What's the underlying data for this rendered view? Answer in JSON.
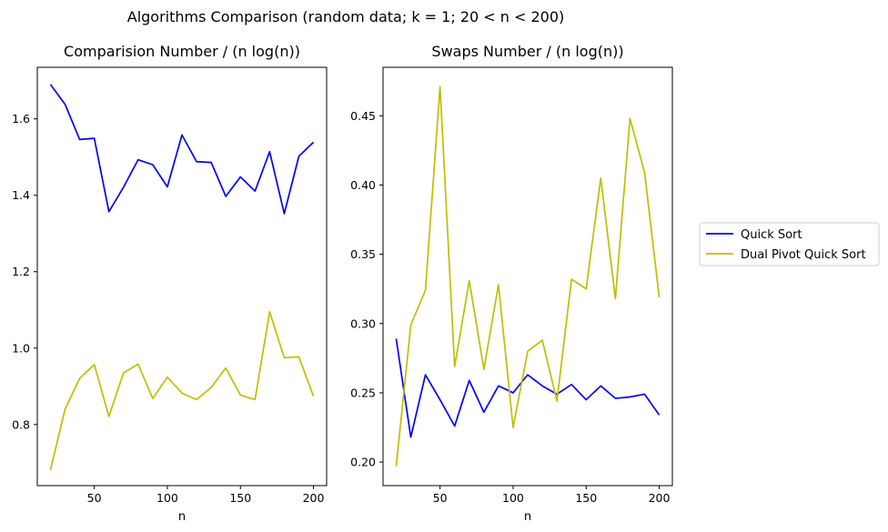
{
  "figure": {
    "suptitle": "Algorithms Comparison (random data;  k = 1;  20 < n < 200)"
  },
  "legend": {
    "placement": "right-center",
    "entries": [
      {
        "label": "Quick Sort",
        "color": "#0000ff"
      },
      {
        "label": "Dual Pivot Quick Sort",
        "color": "#bfbf00"
      }
    ]
  },
  "chart_data": [
    {
      "type": "line",
      "title": "Comparision Number / (n log(n))",
      "xlabel": "n",
      "ylabel": "",
      "xlim": [
        11,
        209
      ],
      "ylim": [
        0.64,
        1.735
      ],
      "xticks": [
        50,
        100,
        150,
        200
      ],
      "yticks": [
        0.8,
        1.0,
        1.2,
        1.4,
        1.6
      ],
      "xtick_labels": [
        "50",
        "100",
        "150",
        "200"
      ],
      "ytick_labels": [
        "0.8",
        "1.0",
        "1.2",
        "1.4",
        "1.6"
      ],
      "grid": false,
      "x": [
        20,
        30,
        40,
        50,
        60,
        70,
        80,
        90,
        100,
        110,
        120,
        130,
        140,
        150,
        160,
        170,
        180,
        190,
        200
      ],
      "series": [
        {
          "name": "Quick Sort",
          "color": "#0000ff",
          "values": [
            1.69,
            1.638,
            1.546,
            1.549,
            1.357,
            1.421,
            1.493,
            1.48,
            1.422,
            1.558,
            1.488,
            1.486,
            1.397,
            1.448,
            1.411,
            1.514,
            1.352,
            1.502,
            1.539
          ]
        },
        {
          "name": "Dual Pivot Quick Sort",
          "color": "#bfbf00",
          "values": [
            0.681,
            0.84,
            0.921,
            0.957,
            0.821,
            0.935,
            0.958,
            0.868,
            0.924,
            0.882,
            0.865,
            0.897,
            0.948,
            0.877,
            0.865,
            1.095,
            0.975,
            0.977,
            0.874
          ]
        }
      ]
    },
    {
      "type": "line",
      "title": "Swaps Number / (n log(n))",
      "xlabel": "n",
      "ylabel": "",
      "xlim": [
        11,
        209
      ],
      "ylim": [
        0.183,
        0.485
      ],
      "xticks": [
        50,
        100,
        150,
        200
      ],
      "yticks": [
        0.2,
        0.25,
        0.3,
        0.35,
        0.4,
        0.45
      ],
      "xtick_labels": [
        "50",
        "100",
        "150",
        "200"
      ],
      "ytick_labels": [
        "0.20",
        "0.25",
        "0.30",
        "0.35",
        "0.40",
        "0.45"
      ],
      "grid": false,
      "x": [
        20,
        30,
        40,
        50,
        60,
        70,
        80,
        90,
        100,
        110,
        120,
        130,
        140,
        150,
        160,
        170,
        180,
        190,
        200
      ],
      "series": [
        {
          "name": "Quick Sort",
          "color": "#0000ff",
          "values": [
            0.289,
            0.218,
            0.263,
            0.245,
            0.226,
            0.259,
            0.236,
            0.255,
            0.25,
            0.263,
            0.255,
            0.249,
            0.256,
            0.245,
            0.255,
            0.246,
            0.247,
            0.249,
            0.234
          ]
        },
        {
          "name": "Dual Pivot Quick Sort",
          "color": "#bfbf00",
          "values": [
            0.197,
            0.299,
            0.324,
            0.471,
            0.269,
            0.331,
            0.267,
            0.328,
            0.225,
            0.28,
            0.288,
            0.244,
            0.332,
            0.325,
            0.405,
            0.318,
            0.448,
            0.409,
            0.319
          ]
        }
      ]
    }
  ]
}
